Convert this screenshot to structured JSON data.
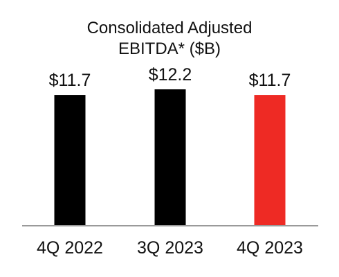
{
  "chart_data": {
    "type": "bar",
    "title_lines": [
      "Consolidated Adjusted",
      "EBITDA* ($B)"
    ],
    "categories": [
      "4Q 2022",
      "3Q 2023",
      "4Q 2023"
    ],
    "values": [
      11.7,
      12.2,
      11.7
    ],
    "value_labels": [
      "$11.7",
      "$12.2",
      "$11.7"
    ],
    "bar_colors": [
      "#000000",
      "#000000",
      "#ee2a24"
    ],
    "axis_color": "#9a9a9a",
    "ylim": [
      0,
      12.2
    ],
    "grid": false,
    "legend": "none"
  }
}
